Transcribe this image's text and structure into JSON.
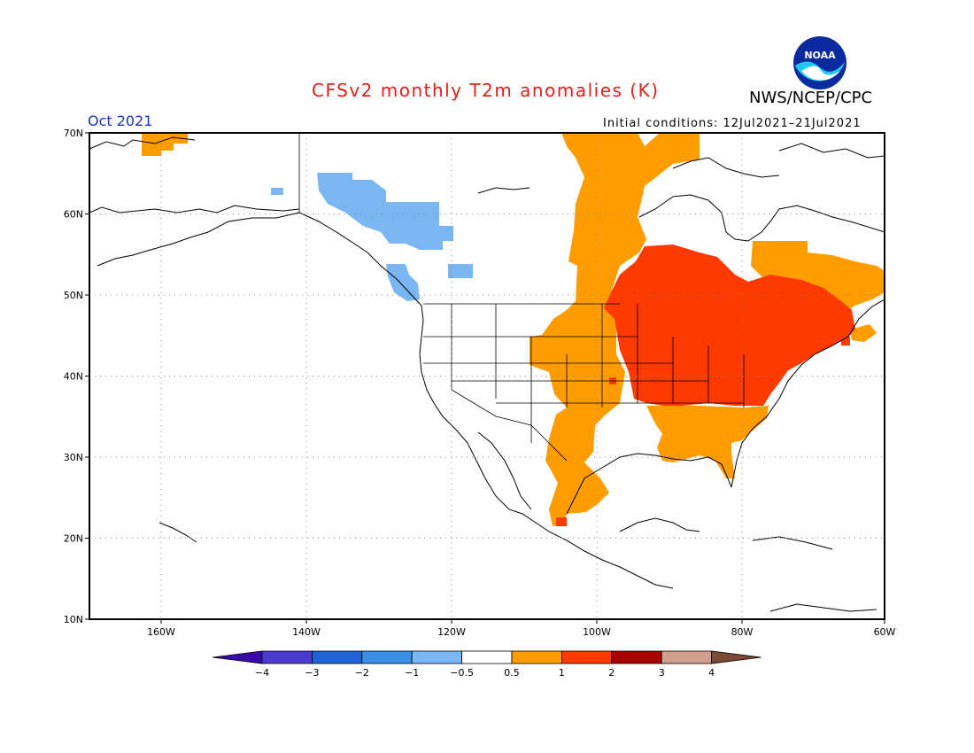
{
  "header": {
    "title": "CFSv2 monthly T2m anomalies (K)",
    "org": "NWS/NCEP/CPC",
    "month": "Oct 2021",
    "initial_conditions": "Initial conditions: 12Jul2021–21Jul2021",
    "logo_text": "NOAA"
  },
  "axes": {
    "lat_labels": [
      "70N",
      "60N",
      "50N",
      "40N",
      "30N",
      "20N",
      "10N"
    ],
    "lon_labels": [
      "160W",
      "140W",
      "120W",
      "100W",
      "80W",
      "60W"
    ]
  },
  "colorbar": {
    "tick_labels": [
      "−4",
      "−3",
      "−2",
      "−1",
      "−0.5",
      "0.5",
      "1",
      "2",
      "3",
      "4"
    ],
    "colors": [
      "#3a0aa8",
      "#4a3ccf",
      "#1f63d6",
      "#3d8ee6",
      "#7ab6f2",
      "#ffffff",
      "#ff9c00",
      "#ff3a00",
      "#a80000",
      "#cfa090",
      "#7a4a36"
    ]
  },
  "anomaly_colors": {
    "cool_-1_-0.5": "#7ab6f2",
    "warm_0.5_1": "#ff9c00",
    "warm_1_2": "#ff3a00"
  }
}
